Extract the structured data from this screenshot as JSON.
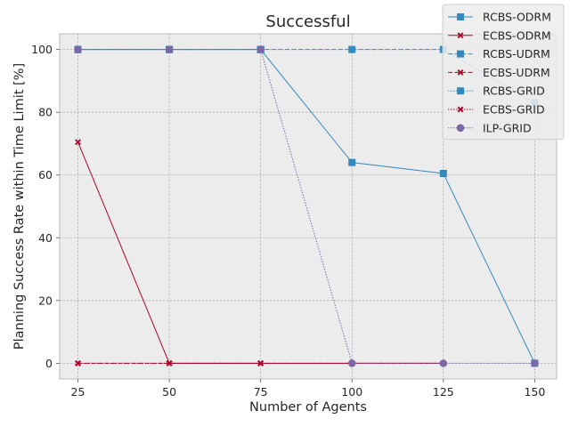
{
  "chart_data": {
    "type": "line",
    "title": "Successful",
    "xlabel": "Number of Agents",
    "ylabel": "Planning Success Rate within Time Limit [%]",
    "x": [
      25,
      50,
      75,
      100,
      125,
      150
    ],
    "xlim": [
      20,
      156
    ],
    "ylim": [
      -5,
      105
    ],
    "xticks": [
      25,
      50,
      75,
      100,
      125,
      150
    ],
    "yticks": [
      0,
      20,
      40,
      60,
      80,
      100
    ],
    "grid": true,
    "legend_position": "top-right",
    "background": "#ececec",
    "series": [
      {
        "name": "RCBS-ODRM",
        "color": "#348abd",
        "linestyle": "solid",
        "marker": "square",
        "x": [
          25,
          50,
          75,
          100,
          125,
          150
        ],
        "values": [
          100,
          100,
          100,
          64,
          60.5,
          0
        ]
      },
      {
        "name": "ECBS-ODRM",
        "color": "#a60628",
        "linestyle": "solid",
        "marker": "x",
        "x": [
          25,
          50,
          75,
          100,
          125
        ],
        "values": [
          70.5,
          0,
          0,
          0,
          0
        ]
      },
      {
        "name": "RCBS-UDRM",
        "color": "#348abd",
        "linestyle": "dashed",
        "marker": "square",
        "x": [
          25,
          50,
          75,
          100,
          125,
          150
        ],
        "values": [
          100,
          100,
          100,
          100,
          100,
          83
        ]
      },
      {
        "name": "ECBS-UDRM",
        "color": "#a60628",
        "linestyle": "dashed",
        "marker": "x",
        "x": [
          25,
          50,
          75,
          100,
          125
        ],
        "values": [
          0,
          0,
          0,
          0,
          0
        ]
      },
      {
        "name": "RCBS-GRID",
        "color": "#348abd",
        "linestyle": "dotted",
        "marker": "square",
        "x": [
          25,
          50,
          75
        ],
        "values": [
          100,
          100,
          100
        ]
      },
      {
        "name": "ECBS-GRID",
        "color": "#a60628",
        "linestyle": "dotted",
        "marker": "x",
        "x": [
          25,
          50,
          75
        ],
        "values": [
          0,
          0,
          0
        ]
      },
      {
        "name": "ILP-GRID",
        "color": "#7a68a6",
        "linestyle": "dotted",
        "marker": "circle",
        "x": [
          25,
          50,
          75,
          100,
          125,
          150
        ],
        "values": [
          100,
          100,
          100,
          0,
          0,
          0
        ]
      }
    ]
  }
}
